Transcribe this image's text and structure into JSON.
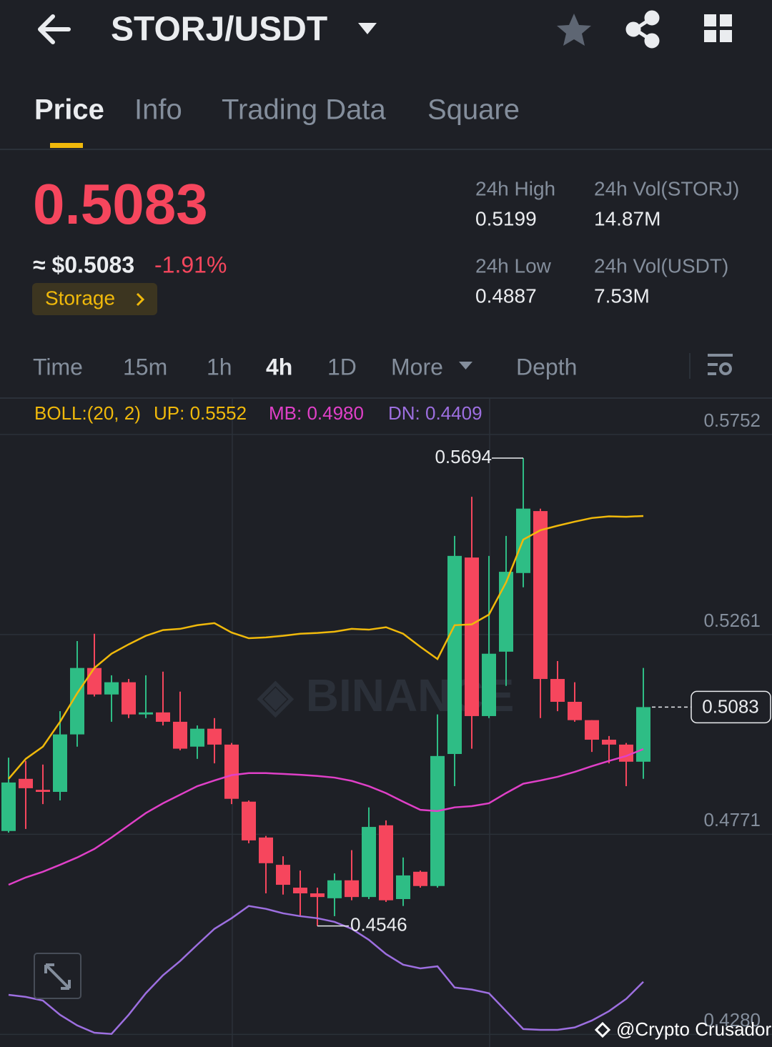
{
  "header": {
    "pair": "STORJ/USDT"
  },
  "tabs": [
    "Price",
    "Info",
    "Trading Data",
    "Square"
  ],
  "price": {
    "last": "0.5083",
    "fiat": "≈ $0.5083",
    "change": "-1.91%",
    "tag": "Storage"
  },
  "stats": [
    {
      "label": "24h High",
      "value": "0.5199"
    },
    {
      "label": "24h Vol(STORJ)",
      "value": "14.87M"
    },
    {
      "label": "24h Low",
      "value": "0.4887"
    },
    {
      "label": "24h Vol(USDT)",
      "value": "7.53M"
    }
  ],
  "intervals": [
    "Time",
    "15m",
    "1h",
    "4h",
    "1D",
    "More",
    "Depth"
  ],
  "chart_data": {
    "type": "candlestick",
    "legend": [
      "BOLL:(20, 2)",
      "UP: 0.5552",
      "MB: 0.4980",
      "DN: 0.4409"
    ],
    "up_color": "#2ebd85",
    "down_color": "#f6465d",
    "ylim": [
      0.4249,
      0.5836
    ],
    "yticks": [
      0.5752,
      0.5261,
      0.4771,
      {
        "value": 0.428,
        "label": "0.4280"
      }
    ],
    "grid": true,
    "open": [
      0.4779,
      0.4907,
      0.488,
      0.4875,
      0.5016,
      0.5179,
      0.5114,
      0.5144,
      0.5065,
      0.507,
      0.5047,
      0.4986,
      0.503,
      0.4991,
      0.4851,
      0.4763,
      0.4696,
      0.464,
      0.4626,
      0.4614,
      0.4658,
      0.4617,
      0.4793,
      0.4612,
      0.4679,
      0.4644,
      0.4968,
      0.545,
      0.5061,
      0.5219,
      0.5412,
      0.5564,
      0.5152,
      0.5096,
      0.5051,
      0.5003,
      0.4991,
      0.4949
    ],
    "high": [
      0.4959,
      0.4951,
      0.4942,
      0.5073,
      0.5245,
      0.5263,
      0.5161,
      0.5152,
      0.5161,
      0.517,
      0.5121,
      0.5038,
      0.5056,
      0.4995,
      0.4854,
      0.4767,
      0.4717,
      0.4682,
      0.464,
      0.4675,
      0.4732,
      0.4837,
      0.4805,
      0.4714,
      0.4682,
      0.5065,
      0.5503,
      0.5599,
      0.5454,
      0.5503,
      0.5694,
      0.557,
      0.5196,
      0.5144,
      0.5051,
      0.5012,
      0.4995,
      0.5179
    ],
    "low": [
      0.4775,
      0.4784,
      0.4845,
      0.4854,
      0.4986,
      0.5109,
      0.5047,
      0.5056,
      0.5056,
      0.5038,
      0.4977,
      0.4956,
      0.4945,
      0.4845,
      0.4749,
      0.4626,
      0.4623,
      0.457,
      0.4546,
      0.457,
      0.4609,
      0.4612,
      0.4605,
      0.4595,
      0.464,
      0.464,
      0.4889,
      0.4981,
      0.5056,
      0.5135,
      0.5377,
      0.5056,
      0.5073,
      0.5047,
      0.4973,
      0.4945,
      0.4889,
      0.4907
    ],
    "close": [
      0.4898,
      0.4884,
      0.4875,
      0.5016,
      0.5179,
      0.5114,
      0.5144,
      0.5065,
      0.507,
      0.5047,
      0.4981,
      0.503,
      0.4991,
      0.4858,
      0.4756,
      0.47,
      0.4647,
      0.4626,
      0.4617,
      0.4658,
      0.4617,
      0.4789,
      0.4609,
      0.467,
      0.4644,
      0.4963,
      0.5454,
      0.5061,
      0.5214,
      0.5415,
      0.557,
      0.5152,
      0.5096,
      0.5051,
      0.5003,
      0.4991,
      0.4949,
      0.5083
    ],
    "series": [
      {
        "color": "#f0b90b",
        "values": [
          0.4907,
          0.4956,
          0.4986,
          0.5047,
          0.5117,
          0.5179,
          0.5214,
          0.5237,
          0.5258,
          0.5272,
          0.5275,
          0.5284,
          0.5289,
          0.5266,
          0.5252,
          0.5254,
          0.5258,
          0.5263,
          0.5265,
          0.5268,
          0.5275,
          0.5273,
          0.5279,
          0.5263,
          0.5231,
          0.5201,
          0.5284,
          0.5286,
          0.531,
          0.5389,
          0.5494,
          0.5517,
          0.5528,
          0.5538,
          0.5547,
          0.5551,
          0.555,
          0.5552
        ]
      },
      {
        "color": "#e040c8",
        "values": [
          0.4647,
          0.4665,
          0.4679,
          0.4696,
          0.4714,
          0.4735,
          0.4763,
          0.4793,
          0.4823,
          0.4847,
          0.4868,
          0.4889,
          0.4903,
          0.4916,
          0.4921,
          0.4921,
          0.4919,
          0.4917,
          0.4914,
          0.491,
          0.4902,
          0.4889,
          0.4872,
          0.4851,
          0.4831,
          0.4828,
          0.4837,
          0.484,
          0.4847,
          0.4872,
          0.4895,
          0.4903,
          0.4912,
          0.4924,
          0.4938,
          0.4951,
          0.4963,
          0.498
        ]
      },
      {
        "color": "#9d6fe0",
        "values": [
          0.4377,
          0.4372,
          0.4363,
          0.4328,
          0.4302,
          0.4284,
          0.4281,
          0.4328,
          0.4381,
          0.4425,
          0.446,
          0.45,
          0.4539,
          0.4565,
          0.4595,
          0.4588,
          0.4577,
          0.457,
          0.4565,
          0.4556,
          0.4539,
          0.4512,
          0.4477,
          0.4451,
          0.4442,
          0.4447,
          0.4395,
          0.439,
          0.4381,
          0.4337,
          0.4293,
          0.4291,
          0.4291,
          0.4297,
          0.4314,
          0.4337,
          0.4367,
          0.4409
        ]
      }
    ]
  },
  "watermark": "@Crypto Crusador"
}
